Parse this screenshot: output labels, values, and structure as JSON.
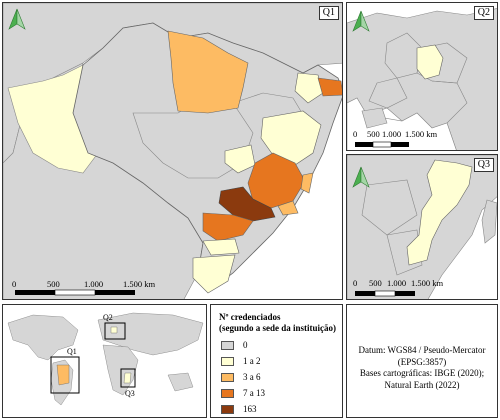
{
  "q1": {
    "label": "Q1",
    "scale": [
      "0",
      "500",
      "1.000",
      "1.500 km"
    ]
  },
  "q2": {
    "label": "Q2",
    "scale": [
      "0",
      "500",
      "1.000",
      "1.500 km"
    ]
  },
  "q3": {
    "label": "Q3",
    "scale": [
      "0",
      "500",
      "1.000",
      "1.500 km"
    ]
  },
  "overview": {
    "labels": [
      "Q1",
      "Q2",
      "Q3"
    ]
  },
  "legend": {
    "title_line1": "Nº credenciados",
    "title_line2": "(segundo a sede da instituição)",
    "items": [
      {
        "label": "0",
        "color": "#d6d6d6"
      },
      {
        "label": "1 a 2",
        "color": "#ffffd4"
      },
      {
        "label": "3 a 6",
        "color": "#fdbb63"
      },
      {
        "label": "7 a 13",
        "color": "#e6761f"
      },
      {
        "label": "163",
        "color": "#8b3a0e"
      }
    ]
  },
  "credits": {
    "line1": "Datum: WGS84 / Pseudo-Mercator",
    "line2": "(EPSG:3857)",
    "line3": "Bases cartográficas: IBGE (2020);",
    "line4": "Natural Earth (2022)"
  },
  "colors": {
    "zero": "#d6d6d6",
    "c1_2": "#ffffd4",
    "c3_6": "#fdbb63",
    "c7_13": "#e6761f",
    "c163": "#8b3a0e",
    "water": "#ffffff",
    "north_arrow": "#4caf50"
  },
  "icons": [
    "north-arrow-icon",
    "scale-bar"
  ]
}
